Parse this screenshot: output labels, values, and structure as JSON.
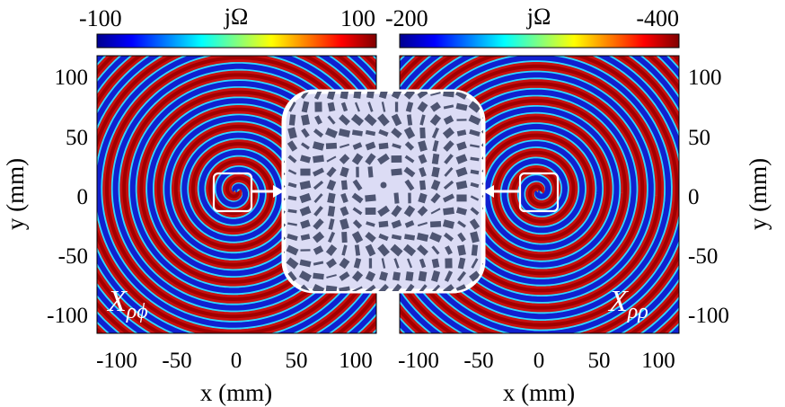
{
  "left_panel": {
    "colorbar": {
      "min_label": "-100",
      "title": "jΩ",
      "max_label": "100"
    },
    "x_ticks": [
      "-100",
      "-50",
      "0",
      "50",
      "100"
    ],
    "y_ticks": [
      "100",
      "50",
      "0",
      "-50",
      "-100"
    ],
    "xlabel": "x (mm)",
    "ylabel": "y (mm)",
    "component": {
      "base": "X",
      "sub": "ρϕ"
    },
    "spiral_sense": 1
  },
  "right_panel": {
    "colorbar": {
      "min_label": "-200",
      "title": "jΩ",
      "max_label": "-400"
    },
    "x_ticks": [
      "-100",
      "-50",
      "0",
      "50",
      "100"
    ],
    "y_ticks": [
      "100",
      "50",
      "0",
      "-50",
      "-100"
    ],
    "xlabel": "x (mm)",
    "ylabel": "y (mm)",
    "component": {
      "base": "X",
      "sub": "ρρ"
    },
    "spiral_sense": -1
  },
  "colors": {
    "inset_background": "#dcdcf5",
    "patch_fill": "#4e5572",
    "spiral_red": "#c81010",
    "spiral_blue": "#1020d0"
  }
}
